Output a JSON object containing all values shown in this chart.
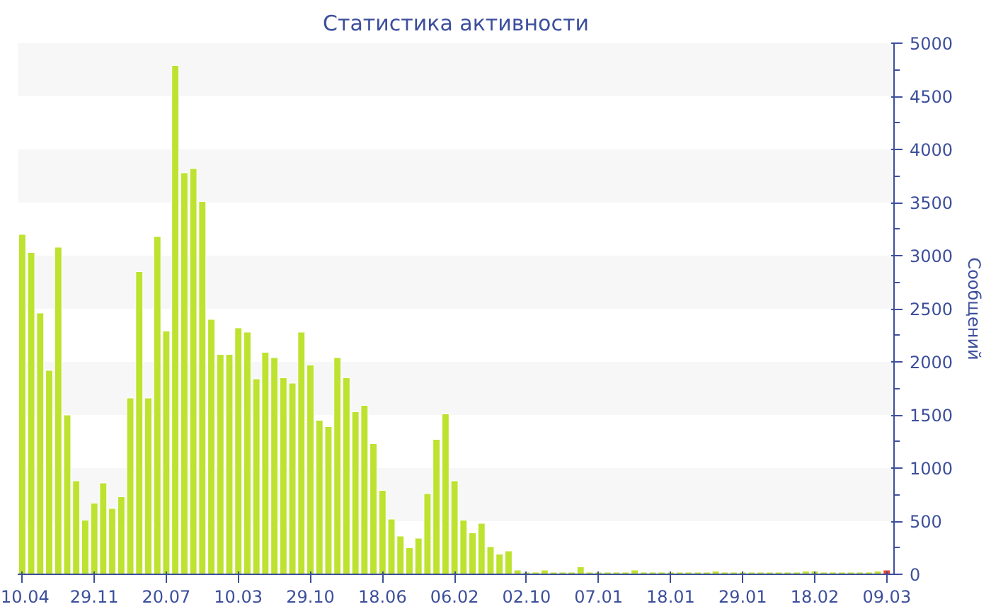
{
  "chart_data": {
    "type": "bar",
    "title": "Статистика активности",
    "ylabel": "Сообщений",
    "categories": [
      "10.04",
      null,
      null,
      null,
      null,
      null,
      null,
      null,
      "29.11",
      null,
      null,
      null,
      null,
      null,
      null,
      null,
      "20.07",
      null,
      null,
      null,
      null,
      null,
      null,
      null,
      "10.03",
      null,
      null,
      null,
      null,
      null,
      null,
      null,
      "29.10",
      null,
      null,
      null,
      null,
      null,
      null,
      null,
      "18.06",
      null,
      null,
      null,
      null,
      null,
      null,
      null,
      "06.02",
      null,
      null,
      null,
      null,
      null,
      null,
      null,
      "02.10",
      null,
      null,
      null,
      null,
      null,
      null,
      null,
      "07.01",
      null,
      null,
      null,
      null,
      null,
      null,
      null,
      "18.01",
      null,
      null,
      null,
      null,
      null,
      null,
      null,
      "29.01",
      null,
      null,
      null,
      null,
      null,
      null,
      null,
      "18.02",
      null,
      null,
      null,
      null,
      null,
      null,
      null,
      "09.03"
    ],
    "values": [
      3200,
      3030,
      2460,
      1920,
      3080,
      1500,
      880,
      510,
      670,
      860,
      620,
      730,
      1660,
      2850,
      1660,
      3180,
      2290,
      4790,
      3780,
      3820,
      3510,
      2400,
      2070,
      2070,
      2320,
      2280,
      1840,
      2090,
      2040,
      1850,
      1800,
      2280,
      1970,
      1450,
      1390,
      2040,
      1850,
      1530,
      1590,
      1230,
      790,
      520,
      360,
      250,
      340,
      760,
      1270,
      1510,
      880,
      510,
      390,
      480,
      260,
      190,
      220,
      40,
      20,
      20,
      40,
      20,
      20,
      20,
      70,
      20,
      20,
      20,
      20,
      20,
      40,
      20,
      20,
      20,
      20,
      20,
      20,
      20,
      20,
      30,
      20,
      20,
      20,
      20,
      20,
      20,
      20,
      20,
      20,
      30,
      30,
      20,
      20,
      20,
      20,
      20,
      20,
      30,
      40
    ],
    "colors": [
      "#bde22f",
      "#bde22f",
      "#bde22f",
      "#bde22f",
      "#bde22f",
      "#bde22f",
      "#bde22f",
      "#bde22f",
      "#bde22f",
      "#bde22f",
      "#bde22f",
      "#bde22f",
      "#bde22f",
      "#bde22f",
      "#bde22f",
      "#bde22f",
      "#bde22f",
      "#bde22f",
      "#bde22f",
      "#bde22f",
      "#bde22f",
      "#bde22f",
      "#bde22f",
      "#bde22f",
      "#bde22f",
      "#bde22f",
      "#bde22f",
      "#bde22f",
      "#bde22f",
      "#bde22f",
      "#bde22f",
      "#bde22f",
      "#bde22f",
      "#bde22f",
      "#bde22f",
      "#bde22f",
      "#bde22f",
      "#bde22f",
      "#bde22f",
      "#bde22f",
      "#bde22f",
      "#bde22f",
      "#bde22f",
      "#bde22f",
      "#bde22f",
      "#bde22f",
      "#bde22f",
      "#bde22f",
      "#bde22f",
      "#bde22f",
      "#bde22f",
      "#bde22f",
      "#bde22f",
      "#bde22f",
      "#bde22f",
      "#bde22f",
      "#bde22f",
      "#bde22f",
      "#bde22f",
      "#bde22f",
      "#bde22f",
      "#bde22f",
      "#bde22f",
      "#bde22f",
      "#bde22f",
      "#bde22f",
      "#bde22f",
      "#bde22f",
      "#bde22f",
      "#bde22f",
      "#bde22f",
      "#bde22f",
      "#bde22f",
      "#bde22f",
      "#bde22f",
      "#bde22f",
      "#bde22f",
      "#bde22f",
      "#bde22f",
      "#bde22f",
      "#bde22f",
      "#bde22f",
      "#bde22f",
      "#bde22f",
      "#bde22f",
      "#bde22f",
      "#bde22f",
      "#bde22f",
      "#bde22f",
      "#bde22f",
      "#bde22f",
      "#bde22f",
      "#bde22f",
      "#bde22f",
      "#bde22f",
      "#bde22f",
      "#e8452c"
    ],
    "ylim": [
      0,
      5000
    ],
    "yticks": [
      0,
      500,
      1000,
      1500,
      2000,
      2500,
      3000,
      3500,
      4000,
      4500,
      5000
    ],
    "bands": [
      {
        "axis": "y",
        "from": 500,
        "to": 1000,
        "color": "#f7f7f7"
      },
      {
        "axis": "y",
        "from": 1500,
        "to": 2000,
        "color": "#f7f7f7"
      },
      {
        "axis": "y",
        "from": 2500,
        "to": 3000,
        "color": "#f7f7f7"
      },
      {
        "axis": "y",
        "from": 3500,
        "to": 4000,
        "color": "#f7f7f7"
      },
      {
        "axis": "y",
        "from": 4500,
        "to": 5000,
        "color": "#f7f7f7"
      }
    ]
  }
}
